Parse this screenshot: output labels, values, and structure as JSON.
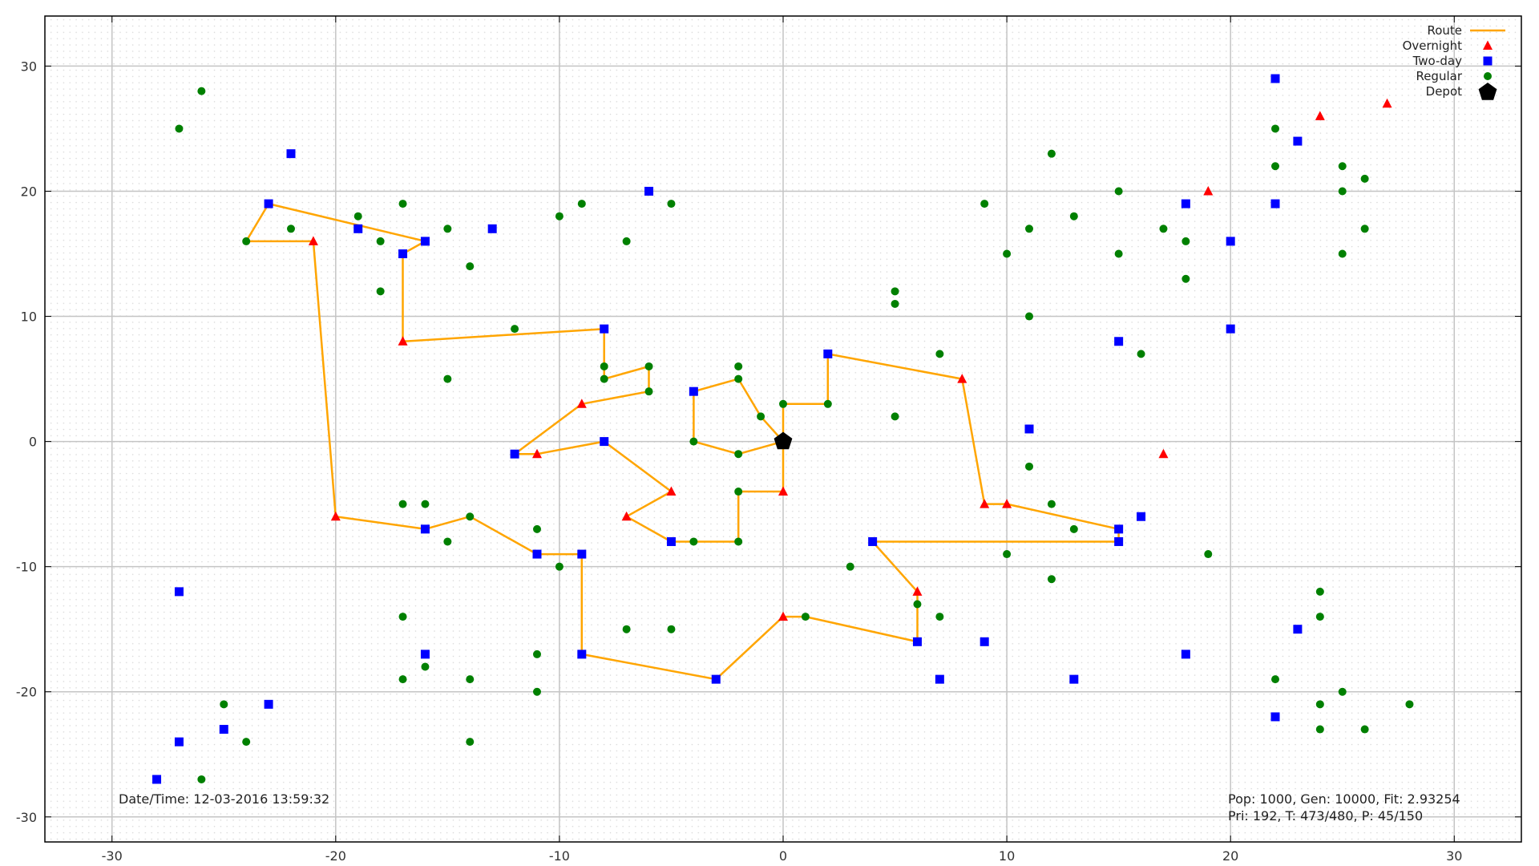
{
  "chart_data": {
    "type": "scatter",
    "xlim": [
      -33,
      33
    ],
    "ylim": [
      -32,
      34
    ],
    "xticks": [
      -30,
      -20,
      -10,
      0,
      10,
      20,
      30
    ],
    "yticks": [
      -30,
      -20,
      -10,
      0,
      10,
      20,
      30
    ],
    "grid": true,
    "legend_position": "top-right",
    "colors": {
      "route": "#FFA500",
      "overnight": "#FF0000",
      "twoday": "#0000FF",
      "regular": "#008000",
      "depot": "#000000"
    },
    "legend": [
      {
        "key": "route",
        "label": "Route"
      },
      {
        "key": "overnight",
        "label": "Overnight"
      },
      {
        "key": "twoday",
        "label": "Two-day"
      },
      {
        "key": "regular",
        "label": "Regular"
      },
      {
        "key": "depot",
        "label": "Depot"
      }
    ],
    "depot": [
      0,
      0
    ],
    "route": [
      [
        0,
        0
      ],
      [
        0,
        3
      ],
      [
        2,
        3
      ],
      [
        2,
        7
      ],
      [
        8,
        5
      ],
      [
        9,
        -5
      ],
      [
        10,
        -5
      ],
      [
        15,
        -7
      ],
      [
        15,
        -8
      ],
      [
        4,
        -8
      ],
      [
        6,
        -12
      ],
      [
        6,
        -16
      ],
      [
        1,
        -14
      ],
      [
        0,
        -14
      ],
      [
        -3,
        -19
      ],
      [
        -9,
        -17
      ],
      [
        -9,
        -9
      ],
      [
        -11,
        -9
      ],
      [
        -14,
        -6
      ],
      [
        -16,
        -7
      ],
      [
        -20,
        -6
      ],
      [
        -21,
        16
      ],
      [
        -24,
        16
      ],
      [
        -23,
        19
      ],
      [
        -16,
        16
      ],
      [
        -17,
        15
      ],
      [
        -17,
        8
      ],
      [
        -8,
        9
      ],
      [
        -8,
        5
      ],
      [
        -6,
        6
      ],
      [
        -6,
        4
      ],
      [
        -9,
        3
      ],
      [
        -12,
        -1
      ],
      [
        -11,
        -1
      ],
      [
        -8,
        0
      ],
      [
        -5,
        -4
      ],
      [
        -7,
        -6
      ],
      [
        -5,
        -8
      ],
      [
        -4,
        -8
      ],
      [
        -2,
        -8
      ],
      [
        -2,
        -4
      ],
      [
        0,
        -4
      ],
      [
        0,
        0
      ],
      [
        -1,
        2
      ],
      [
        -2,
        5
      ],
      [
        -4,
        4
      ],
      [
        -4,
        0
      ],
      [
        -2,
        -1
      ],
      [
        0,
        0
      ]
    ],
    "overnight": [
      [
        -21,
        16
      ],
      [
        -17,
        8
      ],
      [
        -9,
        3
      ],
      [
        -11,
        -1
      ],
      [
        -5,
        -4
      ],
      [
        -7,
        -6
      ],
      [
        -20,
        -6
      ],
      [
        0,
        -4
      ],
      [
        0,
        -14
      ],
      [
        6,
        -12
      ],
      [
        8,
        5
      ],
      [
        9,
        -5
      ],
      [
        10,
        -5
      ],
      [
        17,
        -1
      ],
      [
        19,
        20
      ],
      [
        24,
        26
      ],
      [
        27,
        27
      ]
    ],
    "twoday": [
      [
        -22,
        23
      ],
      [
        -23,
        19
      ],
      [
        -19,
        17
      ],
      [
        -16,
        16
      ],
      [
        -17,
        15
      ],
      [
        -13,
        17
      ],
      [
        -6,
        20
      ],
      [
        -8,
        9
      ],
      [
        -8,
        0
      ],
      [
        -12,
        -1
      ],
      [
        -4,
        4
      ],
      [
        2,
        7
      ],
      [
        -27,
        -12
      ],
      [
        -16,
        -7
      ],
      [
        -11,
        -9
      ],
      [
        -9,
        -9
      ],
      [
        -5,
        -8
      ],
      [
        -16,
        -17
      ],
      [
        -9,
        -17
      ],
      [
        -3,
        -19
      ],
      [
        -23,
        -21
      ],
      [
        -25,
        -23
      ],
      [
        -27,
        -24
      ],
      [
        -28,
        -27
      ],
      [
        4,
        -8
      ],
      [
        6,
        -16
      ],
      [
        7,
        -19
      ],
      [
        9,
        -16
      ],
      [
        13,
        -19
      ],
      [
        11,
        1
      ],
      [
        15,
        8
      ],
      [
        15,
        -7
      ],
      [
        15,
        -8
      ],
      [
        16,
        -6
      ],
      [
        18,
        19
      ],
      [
        20,
        16
      ],
      [
        20,
        9
      ],
      [
        18,
        -17
      ],
      [
        22,
        29
      ],
      [
        23,
        24
      ],
      [
        22,
        19
      ],
      [
        23,
        -15
      ],
      [
        22,
        -22
      ]
    ],
    "regular": [
      [
        -26,
        28
      ],
      [
        -27,
        25
      ],
      [
        -24,
        16
      ],
      [
        -22,
        17
      ],
      [
        -19,
        18
      ],
      [
        -18,
        16
      ],
      [
        -17,
        19
      ],
      [
        -15,
        17
      ],
      [
        -14,
        14
      ],
      [
        -18,
        12
      ],
      [
        -12,
        9
      ],
      [
        -10,
        18
      ],
      [
        -9,
        19
      ],
      [
        -7,
        16
      ],
      [
        -5,
        19
      ],
      [
        -15,
        5
      ],
      [
        -8,
        6
      ],
      [
        -8,
        5
      ],
      [
        -6,
        6
      ],
      [
        -6,
        4
      ],
      [
        -2,
        6
      ],
      [
        -2,
        5
      ],
      [
        -1,
        2
      ],
      [
        0,
        3
      ],
      [
        2,
        3
      ],
      [
        -4,
        0
      ],
      [
        -2,
        -1
      ],
      [
        -17,
        -5
      ],
      [
        -16,
        -5
      ],
      [
        -14,
        -6
      ],
      [
        -15,
        -8
      ],
      [
        -11,
        -7
      ],
      [
        -10,
        -10
      ],
      [
        -4,
        -8
      ],
      [
        -2,
        -8
      ],
      [
        -2,
        -4
      ],
      [
        -17,
        -14
      ],
      [
        -16,
        -18
      ],
      [
        -17,
        -19
      ],
      [
        -14,
        -19
      ],
      [
        -11,
        -17
      ],
      [
        -11,
        -20
      ],
      [
        -7,
        -15
      ],
      [
        -5,
        -15
      ],
      [
        -25,
        -21
      ],
      [
        -24,
        -24
      ],
      [
        -26,
        -27
      ],
      [
        -14,
        -24
      ],
      [
        1,
        -14
      ],
      [
        3,
        -10
      ],
      [
        6,
        -13
      ],
      [
        7,
        -14
      ],
      [
        5,
        2
      ],
      [
        5,
        11
      ],
      [
        5,
        12
      ],
      [
        7,
        7
      ],
      [
        9,
        19
      ],
      [
        10,
        15
      ],
      [
        11,
        17
      ],
      [
        13,
        18
      ],
      [
        12,
        23
      ],
      [
        11,
        10
      ],
      [
        11,
        -2
      ],
      [
        12,
        -5
      ],
      [
        13,
        -7
      ],
      [
        10,
        -9
      ],
      [
        12,
        -11
      ],
      [
        15,
        20
      ],
      [
        15,
        15
      ],
      [
        16,
        7
      ],
      [
        17,
        17
      ],
      [
        18,
        16
      ],
      [
        18,
        13
      ],
      [
        19,
        -9
      ],
      [
        22,
        25
      ],
      [
        22,
        22
      ],
      [
        25,
        22
      ],
      [
        26,
        21
      ],
      [
        25,
        20
      ],
      [
        26,
        17
      ],
      [
        25,
        15
      ],
      [
        24,
        -12
      ],
      [
        24,
        -14
      ],
      [
        22,
        -19
      ],
      [
        24,
        -21
      ],
      [
        25,
        -20
      ],
      [
        24,
        -23
      ],
      [
        26,
        -23
      ],
      [
        28,
        -21
      ]
    ]
  },
  "annotations": {
    "datetime": "Date/Time: 12-03-2016 13:59:32",
    "stats_line1": "Pop: 1000, Gen: 10000, Fit: 2.93254",
    "stats_line2": "Pri: 192, T: 473/480, P: 45/150"
  }
}
